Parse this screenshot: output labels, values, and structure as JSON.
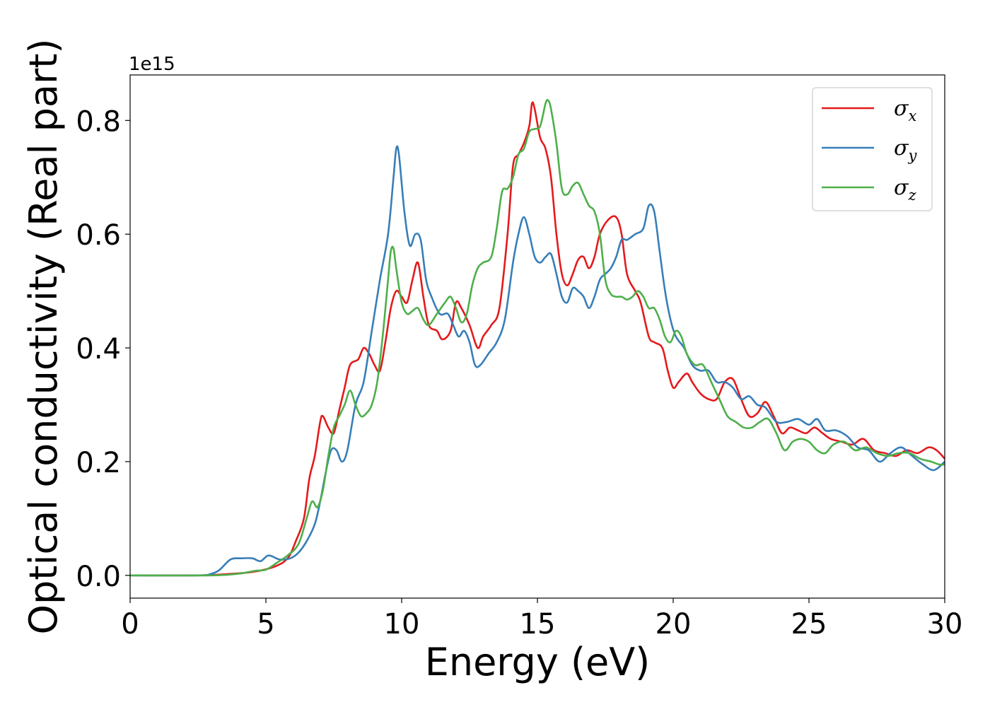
{
  "chart_data": {
    "type": "line",
    "xlabel": "Energy (eV)",
    "ylabel": "Optical conductivity (Real part)",
    "y_offset_text": "1e15",
    "xlim": [
      0,
      30
    ],
    "ylim": [
      -0.04,
      0.88
    ],
    "x_ticks": [
      0,
      5,
      10,
      15,
      20,
      25,
      30
    ],
    "x_tick_labels": [
      "0",
      "5",
      "10",
      "15",
      "20",
      "25",
      "30"
    ],
    "y_ticks": [
      0.0,
      0.2,
      0.4,
      0.6,
      0.8
    ],
    "y_tick_labels": [
      "0.0",
      "0.2",
      "0.4",
      "0.6",
      "0.8"
    ],
    "grid": false,
    "legend_position": "top-right",
    "series": [
      {
        "name": "σ",
        "subscript": "x",
        "color": "#e41a1c",
        "x": [
          0,
          2.5,
          3.5,
          4.5,
          5.3,
          5.8,
          6.1,
          6.4,
          6.6,
          6.8,
          7.0,
          7.1,
          7.3,
          7.5,
          7.7,
          7.9,
          8.1,
          8.4,
          8.6,
          8.8,
          9.0,
          9.2,
          9.4,
          9.6,
          9.8,
          10.0,
          10.2,
          10.4,
          10.6,
          10.8,
          11.0,
          11.3,
          11.5,
          11.8,
          12.0,
          12.2,
          12.5,
          12.8,
          13.0,
          13.3,
          13.6,
          13.9,
          14.1,
          14.3,
          14.5,
          14.7,
          14.8,
          14.9,
          15.1,
          15.3,
          15.5,
          15.7,
          15.9,
          16.1,
          16.3,
          16.5,
          16.7,
          16.9,
          17.1,
          17.3,
          17.6,
          17.9,
          18.1,
          18.3,
          18.6,
          18.8,
          19.1,
          19.3,
          19.6,
          19.8,
          20.0,
          20.2,
          20.5,
          20.7,
          21.0,
          21.3,
          21.6,
          21.9,
          22.2,
          22.5,
          22.8,
          23.1,
          23.4,
          23.7,
          24.0,
          24.3,
          24.6,
          24.9,
          25.2,
          25.5,
          25.8,
          26.2,
          26.6,
          27.0,
          27.4,
          27.8,
          28.2,
          28.6,
          29.0,
          29.4,
          29.7,
          30.0
        ],
        "y": [
          0.0,
          0.0,
          0.002,
          0.006,
          0.015,
          0.03,
          0.06,
          0.1,
          0.17,
          0.21,
          0.27,
          0.28,
          0.26,
          0.25,
          0.29,
          0.33,
          0.37,
          0.38,
          0.4,
          0.39,
          0.37,
          0.36,
          0.41,
          0.47,
          0.5,
          0.49,
          0.48,
          0.52,
          0.55,
          0.49,
          0.44,
          0.43,
          0.415,
          0.43,
          0.48,
          0.47,
          0.44,
          0.4,
          0.42,
          0.44,
          0.47,
          0.6,
          0.72,
          0.74,
          0.76,
          0.79,
          0.83,
          0.82,
          0.77,
          0.75,
          0.7,
          0.6,
          0.53,
          0.51,
          0.53,
          0.555,
          0.56,
          0.54,
          0.56,
          0.6,
          0.625,
          0.63,
          0.6,
          0.53,
          0.5,
          0.48,
          0.42,
          0.41,
          0.4,
          0.36,
          0.33,
          0.34,
          0.355,
          0.34,
          0.32,
          0.31,
          0.31,
          0.34,
          0.345,
          0.31,
          0.28,
          0.285,
          0.305,
          0.28,
          0.25,
          0.26,
          0.255,
          0.25,
          0.26,
          0.25,
          0.24,
          0.235,
          0.23,
          0.24,
          0.22,
          0.215,
          0.21,
          0.22,
          0.215,
          0.225,
          0.22,
          0.205
        ]
      },
      {
        "name": "σ",
        "subscript": "y",
        "color": "#377eb8",
        "x": [
          0,
          2.5,
          3.0,
          3.3,
          3.7,
          4.1,
          4.5,
          4.8,
          5.1,
          5.5,
          5.9,
          6.2,
          6.5,
          6.8,
          7.0,
          7.2,
          7.4,
          7.6,
          7.8,
          8.0,
          8.3,
          8.6,
          8.9,
          9.2,
          9.5,
          9.7,
          9.8,
          9.9,
          10.1,
          10.3,
          10.5,
          10.7,
          10.9,
          11.1,
          11.4,
          11.7,
          11.9,
          12.1,
          12.3,
          12.5,
          12.7,
          12.9,
          13.2,
          13.5,
          13.8,
          14.1,
          14.3,
          14.5,
          14.7,
          14.9,
          15.1,
          15.3,
          15.5,
          15.7,
          15.9,
          16.1,
          16.3,
          16.5,
          16.7,
          16.9,
          17.1,
          17.3,
          17.5,
          17.7,
          17.9,
          18.1,
          18.3,
          18.6,
          18.9,
          19.1,
          19.3,
          19.5,
          19.7,
          19.9,
          20.1,
          20.4,
          20.7,
          21.0,
          21.3,
          21.6,
          21.9,
          22.2,
          22.5,
          22.8,
          23.1,
          23.4,
          23.8,
          24.2,
          24.6,
          25.0,
          25.3,
          25.6,
          26.0,
          26.4,
          26.8,
          27.2,
          27.6,
          28.0,
          28.4,
          28.8,
          29.2,
          29.6,
          30.0
        ],
        "y": [
          0.0,
          0.0,
          0.003,
          0.01,
          0.028,
          0.03,
          0.03,
          0.025,
          0.035,
          0.028,
          0.03,
          0.04,
          0.06,
          0.09,
          0.13,
          0.18,
          0.22,
          0.22,
          0.2,
          0.22,
          0.3,
          0.34,
          0.43,
          0.52,
          0.6,
          0.7,
          0.75,
          0.74,
          0.64,
          0.58,
          0.6,
          0.59,
          0.52,
          0.49,
          0.46,
          0.46,
          0.44,
          0.42,
          0.43,
          0.41,
          0.37,
          0.37,
          0.39,
          0.41,
          0.45,
          0.55,
          0.6,
          0.63,
          0.6,
          0.56,
          0.55,
          0.56,
          0.565,
          0.53,
          0.49,
          0.48,
          0.505,
          0.5,
          0.49,
          0.47,
          0.49,
          0.52,
          0.53,
          0.54,
          0.56,
          0.59,
          0.59,
          0.6,
          0.61,
          0.65,
          0.64,
          0.57,
          0.5,
          0.45,
          0.42,
          0.4,
          0.37,
          0.36,
          0.36,
          0.34,
          0.34,
          0.33,
          0.31,
          0.315,
          0.3,
          0.295,
          0.27,
          0.27,
          0.275,
          0.265,
          0.275,
          0.255,
          0.255,
          0.245,
          0.225,
          0.22,
          0.2,
          0.215,
          0.225,
          0.21,
          0.195,
          0.185,
          0.2
        ]
      },
      {
        "name": "σ",
        "subscript": "z",
        "color": "#4daf4a",
        "x": [
          0,
          3.0,
          4.0,
          4.6,
          5.0,
          5.4,
          5.8,
          6.2,
          6.5,
          6.7,
          6.9,
          7.1,
          7.3,
          7.5,
          7.7,
          7.9,
          8.1,
          8.3,
          8.5,
          8.7,
          8.9,
          9.1,
          9.3,
          9.5,
          9.6,
          9.7,
          9.8,
          10.0,
          10.2,
          10.4,
          10.6,
          10.8,
          11.0,
          11.3,
          11.6,
          11.8,
          12.0,
          12.2,
          12.4,
          12.6,
          12.8,
          13.0,
          13.3,
          13.5,
          13.7,
          13.9,
          14.1,
          14.3,
          14.5,
          14.7,
          14.9,
          15.1,
          15.3,
          15.4,
          15.5,
          15.7,
          15.9,
          16.1,
          16.3,
          16.5,
          16.7,
          16.9,
          17.1,
          17.3,
          17.5,
          17.7,
          17.9,
          18.1,
          18.3,
          18.5,
          18.7,
          18.9,
          19.1,
          19.3,
          19.5,
          19.7,
          19.9,
          20.1,
          20.3,
          20.5,
          20.8,
          21.1,
          21.4,
          21.7,
          22.0,
          22.3,
          22.6,
          22.9,
          23.2,
          23.5,
          23.8,
          24.1,
          24.4,
          24.7,
          25.0,
          25.3,
          25.6,
          25.9,
          26.3,
          26.7,
          27.1,
          27.5,
          27.9,
          28.3,
          28.7,
          29.1,
          29.5,
          29.8,
          30.0
        ],
        "y": [
          0.0,
          0.0,
          0.003,
          0.008,
          0.01,
          0.022,
          0.035,
          0.055,
          0.1,
          0.13,
          0.12,
          0.15,
          0.21,
          0.26,
          0.28,
          0.3,
          0.325,
          0.3,
          0.28,
          0.285,
          0.3,
          0.34,
          0.42,
          0.52,
          0.57,
          0.575,
          0.54,
          0.48,
          0.46,
          0.465,
          0.47,
          0.45,
          0.44,
          0.46,
          0.48,
          0.49,
          0.47,
          0.445,
          0.46,
          0.51,
          0.54,
          0.55,
          0.56,
          0.61,
          0.675,
          0.68,
          0.7,
          0.74,
          0.75,
          0.78,
          0.785,
          0.79,
          0.83,
          0.835,
          0.82,
          0.76,
          0.68,
          0.67,
          0.685,
          0.69,
          0.67,
          0.65,
          0.64,
          0.6,
          0.52,
          0.495,
          0.49,
          0.49,
          0.485,
          0.49,
          0.5,
          0.49,
          0.47,
          0.47,
          0.45,
          0.42,
          0.41,
          0.43,
          0.42,
          0.39,
          0.37,
          0.37,
          0.34,
          0.31,
          0.28,
          0.27,
          0.26,
          0.26,
          0.27,
          0.275,
          0.25,
          0.22,
          0.235,
          0.24,
          0.235,
          0.22,
          0.215,
          0.23,
          0.235,
          0.22,
          0.225,
          0.215,
          0.21,
          0.215,
          0.215,
          0.205,
          0.2,
          0.195,
          0.195
        ]
      }
    ]
  }
}
